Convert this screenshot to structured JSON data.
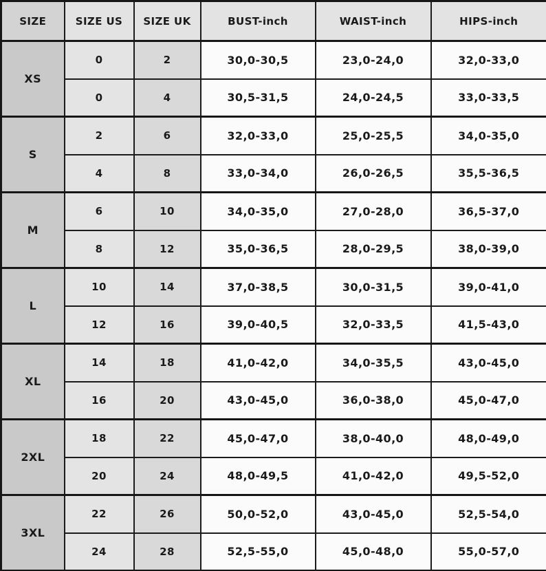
{
  "table": {
    "headers": [
      "SIZE",
      "SIZE US",
      "SIZE UK",
      "BUST-inch",
      "WAIST-inch",
      "HIPS-inch"
    ],
    "groups": [
      {
        "size": "XS",
        "rows": [
          [
            "0",
            "2",
            "30,0-30,5",
            "23,0-24,0",
            "32,0-33,0"
          ],
          [
            "0",
            "4",
            "30,5-31,5",
            "24,0-24,5",
            "33,0-33,5"
          ]
        ]
      },
      {
        "size": "S",
        "rows": [
          [
            "2",
            "6",
            "32,0-33,0",
            "25,0-25,5",
            "34,0-35,0"
          ],
          [
            "4",
            "8",
            "33,0-34,0",
            "26,0-26,5",
            "35,5-36,5"
          ]
        ]
      },
      {
        "size": "M",
        "rows": [
          [
            "6",
            "10",
            "34,0-35,0",
            "27,0-28,0",
            "36,5-37,0"
          ],
          [
            "8",
            "12",
            "35,0-36,5",
            "28,0-29,5",
            "38,0-39,0"
          ]
        ]
      },
      {
        "size": "L",
        "rows": [
          [
            "10",
            "14",
            "37,0-38,5",
            "30,0-31,5",
            "39,0-41,0"
          ],
          [
            "12",
            "16",
            "39,0-40,5",
            "32,0-33,5",
            "41,5-43,0"
          ]
        ]
      },
      {
        "size": "XL",
        "rows": [
          [
            "14",
            "18",
            "41,0-42,0",
            "34,0-35,5",
            "43,0-45,0"
          ],
          [
            "16",
            "20",
            "43,0-45,0",
            "36,0-38,0",
            "45,0-47,0"
          ]
        ]
      },
      {
        "size": "2XL",
        "rows": [
          [
            "18",
            "22",
            "45,0-47,0",
            "38,0-40,0",
            "48,0-49,0"
          ],
          [
            "20",
            "24",
            "48,0-49,5",
            "41,0-42,0",
            "49,5-52,0"
          ]
        ]
      },
      {
        "size": "3XL",
        "rows": [
          [
            "22",
            "26",
            "50,0-52,0",
            "43,0-45,0",
            "52,5-54,0"
          ],
          [
            "24",
            "28",
            "52,5-55,0",
            "45,0-48,0",
            "55,0-57,0"
          ]
        ]
      }
    ],
    "colors": {
      "border": "#1b1b1b",
      "size_column_bg": "#c9c9c9",
      "us_column_bg": "#e4e4e4",
      "uk_column_bg": "#d9d9d9",
      "data_cell_bg": "#fbfbfb",
      "header_bg": "#e3e3e3"
    }
  },
  "chart_data": {
    "type": "table",
    "columns": [
      "SIZE",
      "SIZE US",
      "SIZE UK",
      "BUST-inch",
      "WAIST-inch",
      "HIPS-inch"
    ],
    "rows": [
      [
        "XS",
        "0",
        "2",
        "30,0-30,5",
        "23,0-24,0",
        "32,0-33,0"
      ],
      [
        "XS",
        "0",
        "4",
        "30,5-31,5",
        "24,0-24,5",
        "33,0-33,5"
      ],
      [
        "S",
        "2",
        "6",
        "32,0-33,0",
        "25,0-25,5",
        "34,0-35,0"
      ],
      [
        "S",
        "4",
        "8",
        "33,0-34,0",
        "26,0-26,5",
        "35,5-36,5"
      ],
      [
        "M",
        "6",
        "10",
        "34,0-35,0",
        "27,0-28,0",
        "36,5-37,0"
      ],
      [
        "M",
        "8",
        "12",
        "35,0-36,5",
        "28,0-29,5",
        "38,0-39,0"
      ],
      [
        "L",
        "10",
        "14",
        "37,0-38,5",
        "30,0-31,5",
        "39,0-41,0"
      ],
      [
        "L",
        "12",
        "16",
        "39,0-40,5",
        "32,0-33,5",
        "41,5-43,0"
      ],
      [
        "XL",
        "14",
        "18",
        "41,0-42,0",
        "34,0-35,5",
        "43,0-45,0"
      ],
      [
        "XL",
        "16",
        "20",
        "43,0-45,0",
        "36,0-38,0",
        "45,0-47,0"
      ],
      [
        "2XL",
        "18",
        "22",
        "45,0-47,0",
        "38,0-40,0",
        "48,0-49,0"
      ],
      [
        "2XL",
        "20",
        "24",
        "48,0-49,5",
        "41,0-42,0",
        "49,5-52,0"
      ],
      [
        "3XL",
        "22",
        "26",
        "50,0-52,0",
        "43,0-45,0",
        "52,5-54,0"
      ],
      [
        "3XL",
        "24",
        "28",
        "52,5-55,0",
        "45,0-48,0",
        "55,0-57,0"
      ]
    ],
    "layout_hints": {
      "grid": true,
      "merged_first_column_per_size_group": true
    }
  }
}
